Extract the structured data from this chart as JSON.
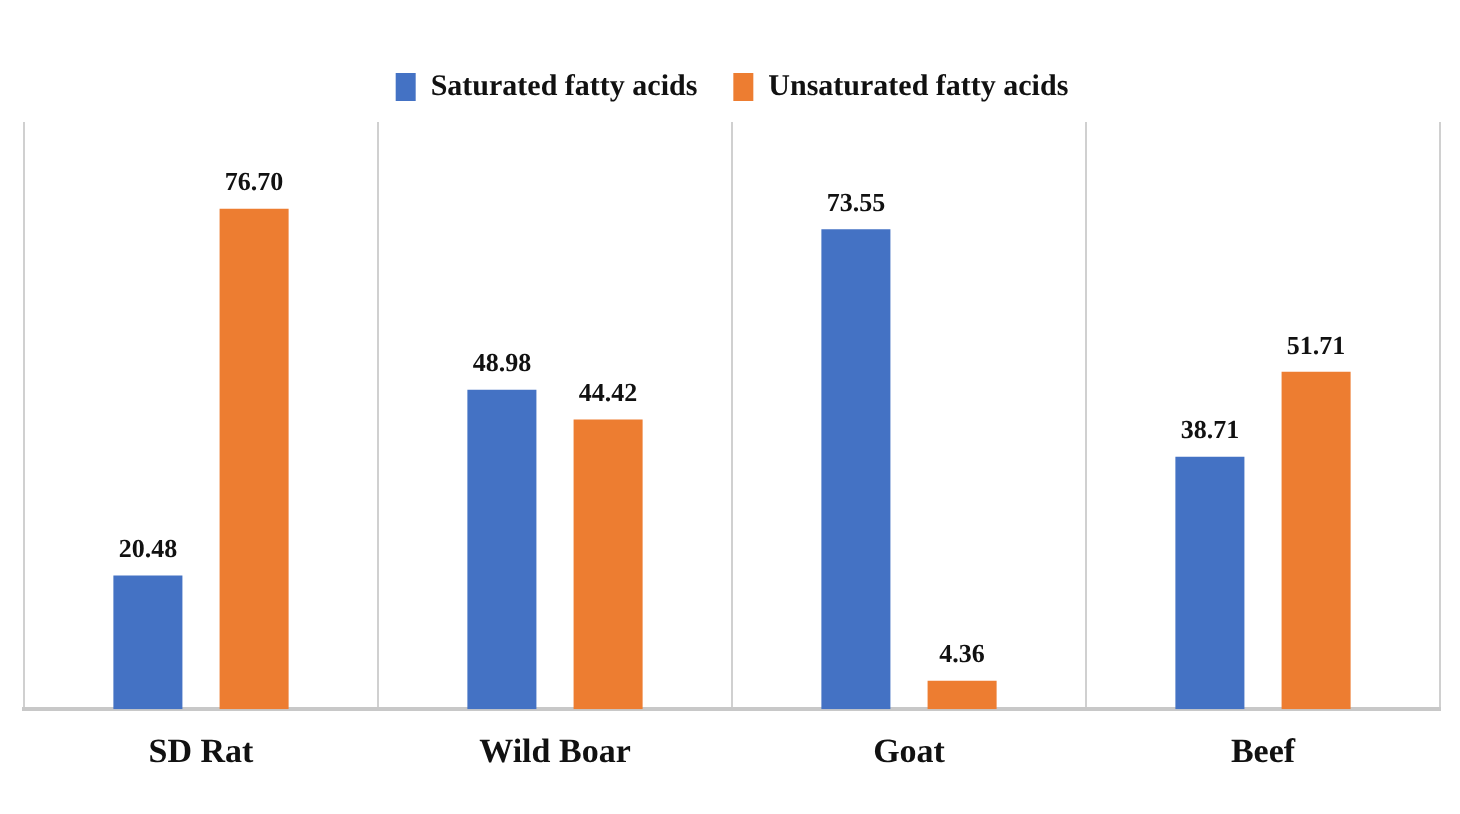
{
  "chart_data": {
    "type": "bar",
    "categories": [
      "SD Rat",
      "Wild Boar",
      "Goat",
      "Beef"
    ],
    "series": [
      {
        "name": "Saturated fatty acids",
        "color": "#4472c4",
        "values": [
          20.48,
          48.98,
          73.55,
          38.71
        ],
        "value_labels": [
          "20.48",
          "48.98",
          "73.55",
          "38.71"
        ]
      },
      {
        "name": "Unsaturated fatty acids",
        "color": "#ed7d31",
        "values": [
          76.7,
          44.42,
          4.36,
          51.71
        ],
        "value_labels": [
          "76.70",
          "44.42",
          "4.36",
          "51.71"
        ]
      }
    ],
    "grid": "x",
    "legend": "top"
  }
}
